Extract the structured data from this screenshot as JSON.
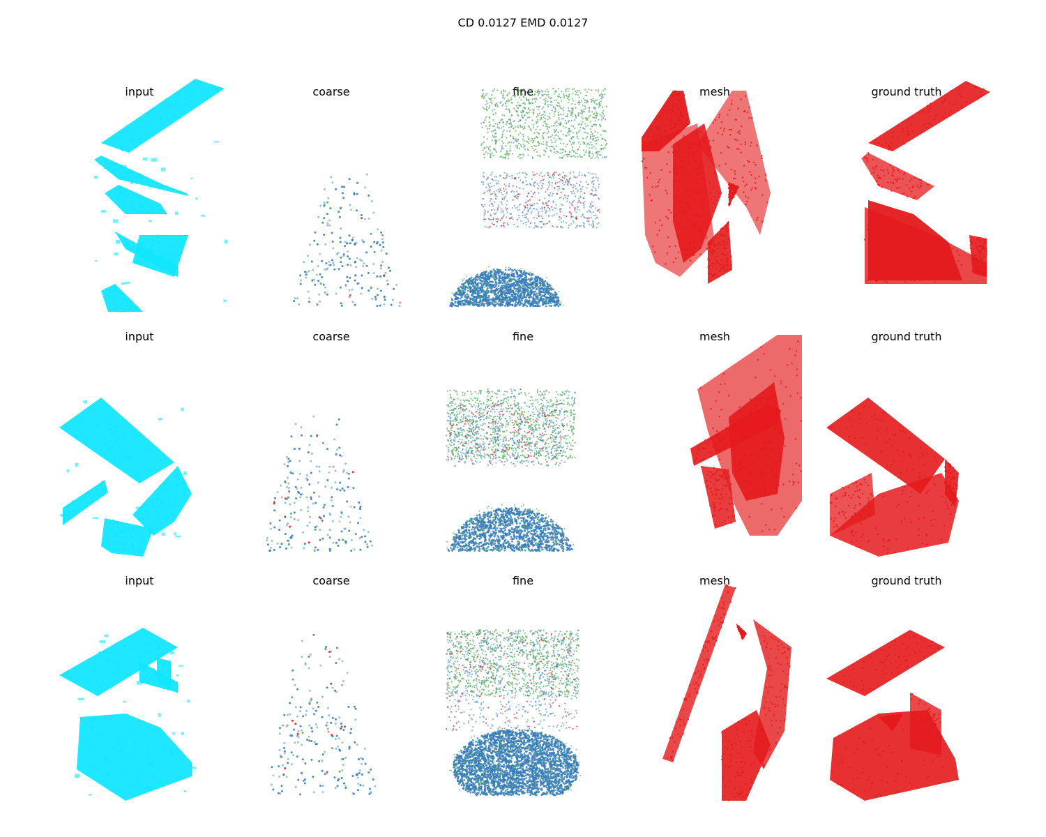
{
  "figure": {
    "title": "CD 0.0127  EMD 0.0127"
  },
  "colors": {
    "input": "#12e6ff",
    "mesh": "#e41a1c",
    "ground_truth": "#e41a1c",
    "blue": "#377eb8",
    "green": "#4daf4a",
    "red": "#e41a1c"
  },
  "chart_data": {
    "type": "scatter",
    "projection": "3d",
    "axes_visible": false,
    "grid": false,
    "rows": [
      {
        "panels": [
          {
            "title": "input",
            "style": "input"
          },
          {
            "title": "coarse",
            "style": "coarse"
          },
          {
            "title": "fine",
            "style": "fine"
          },
          {
            "title": "mesh",
            "style": "mesh"
          },
          {
            "title": "ground truth",
            "style": "ground_truth"
          }
        ]
      },
      {
        "panels": [
          {
            "title": "input",
            "style": "input"
          },
          {
            "title": "coarse",
            "style": "coarse"
          },
          {
            "title": "fine",
            "style": "fine"
          },
          {
            "title": "mesh",
            "style": "mesh"
          },
          {
            "title": "ground truth",
            "style": "ground_truth"
          }
        ]
      },
      {
        "panels": [
          {
            "title": "input",
            "style": "input"
          },
          {
            "title": "coarse",
            "style": "coarse"
          },
          {
            "title": "fine",
            "style": "fine"
          },
          {
            "title": "mesh",
            "style": "mesh"
          },
          {
            "title": "ground truth",
            "style": "ground_truth"
          }
        ]
      }
    ]
  }
}
